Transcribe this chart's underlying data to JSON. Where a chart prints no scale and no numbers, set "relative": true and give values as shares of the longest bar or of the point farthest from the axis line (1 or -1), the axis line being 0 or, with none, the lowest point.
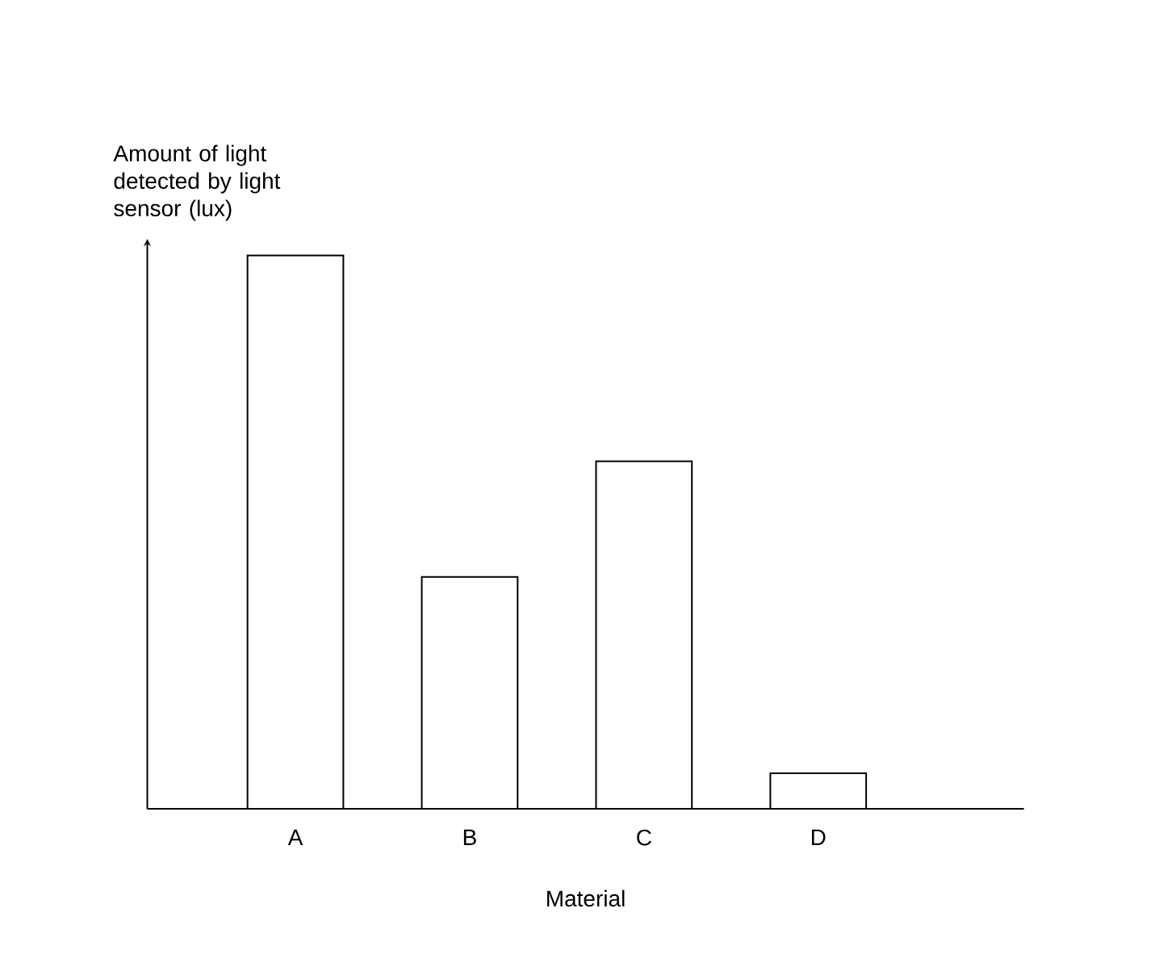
{
  "chart_data": {
    "type": "bar",
    "relative": true,
    "ylabel": "Amount of light detected by light sensor (lux)",
    "xlabel": "Material",
    "categories": [
      "A",
      "B",
      "C",
      "D"
    ],
    "values": [
      1,
      0.419,
      0.628,
      0.064
    ],
    "color": "#ffffff"
  }
}
